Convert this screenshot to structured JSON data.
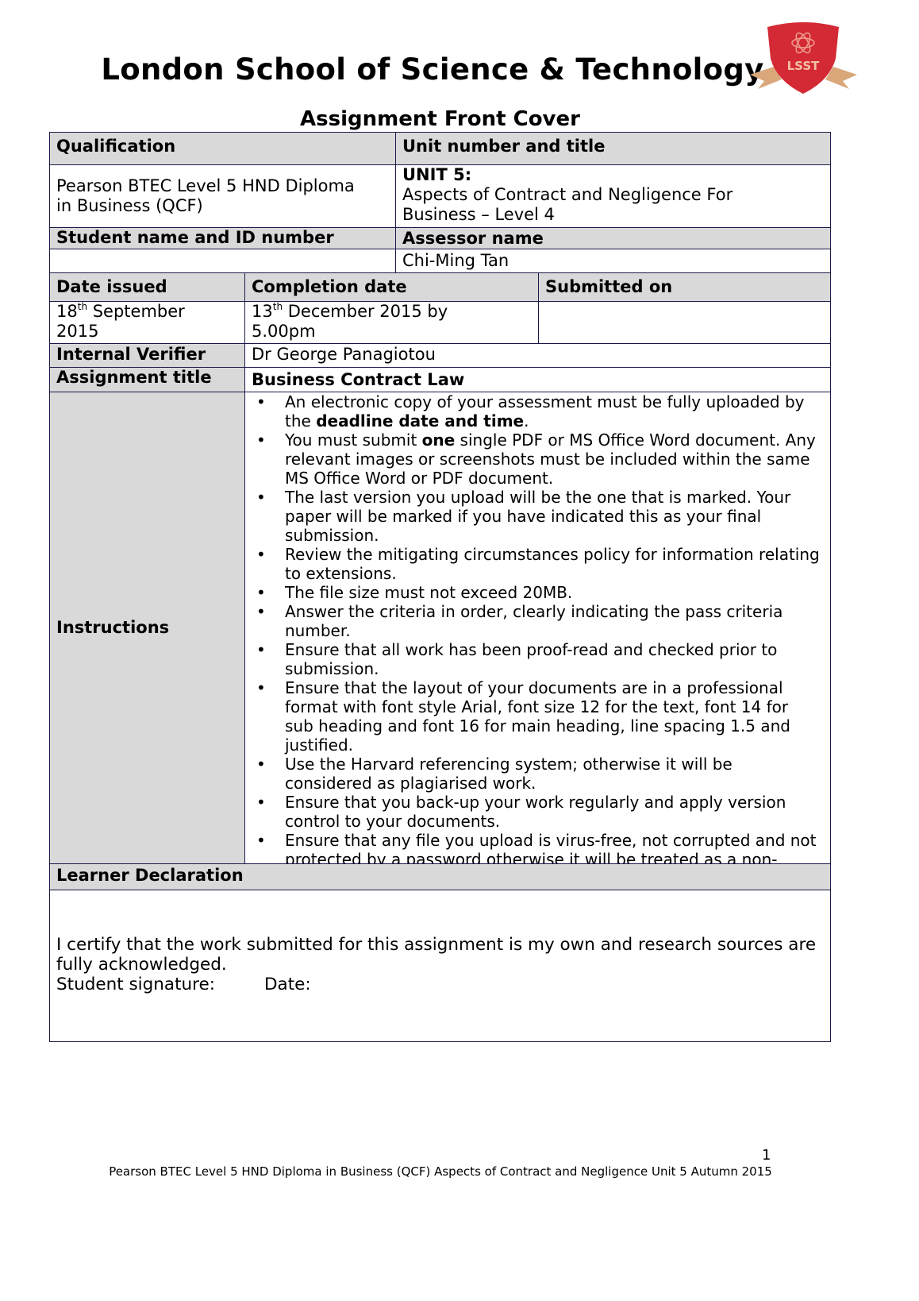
{
  "header": {
    "title": "London School of Science & Technology",
    "logo_text": "LSST",
    "subtitle": "Assignment Front Cover"
  },
  "colors": {
    "header_fill": "#d9d9d9",
    "border": "#1a1a4a",
    "logo_red": "#d42a35",
    "logo_ribbon": "#d9a77a"
  },
  "table": {
    "qualification_label": "Qualification",
    "unit_label": "Unit number and title",
    "qualification_line1": "Pearson BTEC Level 5 HND Diploma",
    "qualification_line2": "in Business (QCF)",
    "unit_number": "UNIT 5:",
    "unit_title_line1": "Aspects of Contract and Negligence For",
    "unit_title_line2": "Business – Level 4",
    "student_label": "Student name and ID number",
    "assessor_label": "Assessor name",
    "student_value": "",
    "assessor_value": "Chi-Ming Tan",
    "date_issued_label": "Date issued",
    "completion_label": "Completion date",
    "submitted_label": "Submitted on",
    "date_issued_day": "18",
    "date_issued_sup": "th",
    "date_issued_rest": " September",
    "date_issued_year": "2015",
    "completion_day": "13",
    "completion_sup": "th",
    "completion_rest": " December 2015 by",
    "completion_time": "5.00pm",
    "submitted_value": "",
    "verifier_label": "Internal Verifier",
    "verifier_value": "Dr George Panagiotou",
    "assignment_title_label": "Assignment title",
    "assignment_title_value": "Business Contract Law",
    "instructions_label": "Instructions",
    "instructions": [
      {
        "a": "An electronic copy of your assessment must be fully uploaded by the ",
        "b": "deadline date and time",
        "c": "."
      },
      {
        "a": "You must submit ",
        "b": "one",
        "c": " single PDF or MS Office Word document. Any relevant images or screenshots must be included within the same MS Office Word or PDF document."
      },
      {
        "a": "The last version you upload will be the one that is marked. Your paper will be marked if you have indicated this as your final submission.",
        "b": "",
        "c": ""
      },
      {
        "a": "Review the mitigating circumstances policy for information relating to extensions.",
        "b": "",
        "c": ""
      },
      {
        "a": "The file size must not exceed 20MB.",
        "b": "",
        "c": ""
      },
      {
        "a": "Answer the criteria in order, clearly indicating the pass criteria number.",
        "b": "",
        "c": ""
      },
      {
        "a": "Ensure that all work has been proof-read and checked prior to submission.",
        "b": "",
        "c": ""
      },
      {
        "a": "Ensure that the layout of your documents are in a professional format with font style Arial, font size 12 for the text, font 14 for sub heading and font 16 for main heading, line spacing 1.5 and justified.",
        "b": "",
        "c": ""
      },
      {
        "a": "Use the Harvard referencing system; otherwise it will be considered as plagiarised work.",
        "b": "",
        "c": ""
      },
      {
        "a": "Ensure that you back-up your work regularly and apply version control to your documents.",
        "b": "",
        "c": ""
      },
      {
        "a": "Ensure that any file you upload is virus-free, not corrupted and not protected by a password otherwise it will be treated as a non-",
        "b": "",
        "c": ""
      }
    ],
    "declaration_label": "Learner Declaration",
    "declaration_text": "I certify that the work submitted for this assignment is my own and research sources are fully acknowledged.",
    "signature_label": "Student signature:",
    "date_label": "Date:"
  },
  "footer": {
    "page_number": "1",
    "text": "Pearson BTEC Level 5 HND Diploma in Business (QCF) Aspects of Contract and Negligence  Unit 5  Autumn 2015"
  }
}
